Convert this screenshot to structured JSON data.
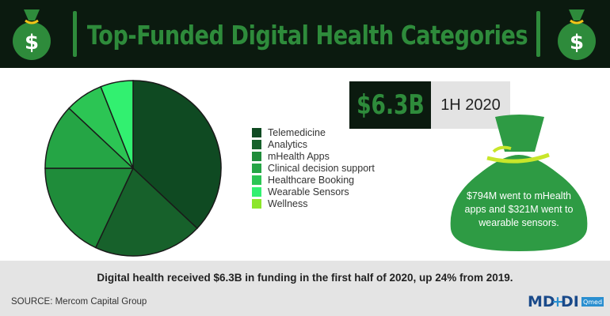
{
  "header": {
    "title": "Top-Funded Digital Health Categories"
  },
  "highlight": {
    "amount": "$6.3B",
    "period": "1H 2020"
  },
  "bag_note": "$794M went to mHealth apps and $321M went to wearable sensors.",
  "footer": {
    "summary": "Digital health received $6.3B in funding in the first half of 2020, up 24% from 2019.",
    "source": "SOURCE: Mercom Capital Group",
    "logo_text": "MD+DI",
    "logo_badge": "Qmed"
  },
  "chart_data": {
    "type": "pie",
    "title": "",
    "categories": [
      "Telemedicine",
      "Analytics",
      "mHealth Apps",
      "Clinical decision support",
      "Healthcare Booking",
      "Wearable Sensors",
      "Wellness"
    ],
    "values": [
      37,
      20,
      18,
      12,
      7,
      6,
      0
    ],
    "colors": [
      "#0f4a22",
      "#17612b",
      "#1f8c3a",
      "#25a545",
      "#2cc554",
      "#32f070",
      "#8ce62a"
    ],
    "legend_position": "right"
  }
}
